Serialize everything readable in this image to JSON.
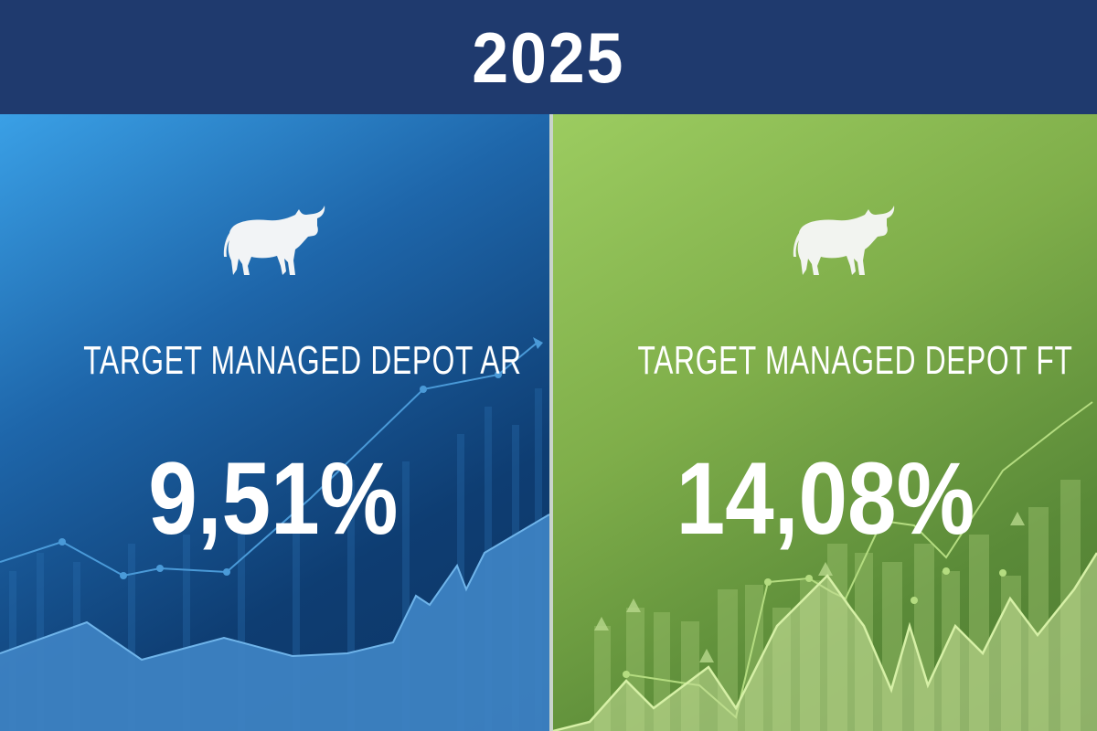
{
  "header": {
    "year": "2025"
  },
  "panels": [
    {
      "title": "TARGET MANAGED DEPOT AR",
      "value": "9,51%",
      "icon": "bull-icon",
      "color": "#1e66aa"
    },
    {
      "title": "TARGET MANAGED DEPOT FT",
      "value": "14,08%",
      "icon": "bull-icon",
      "color": "#7fae4a"
    }
  ]
}
